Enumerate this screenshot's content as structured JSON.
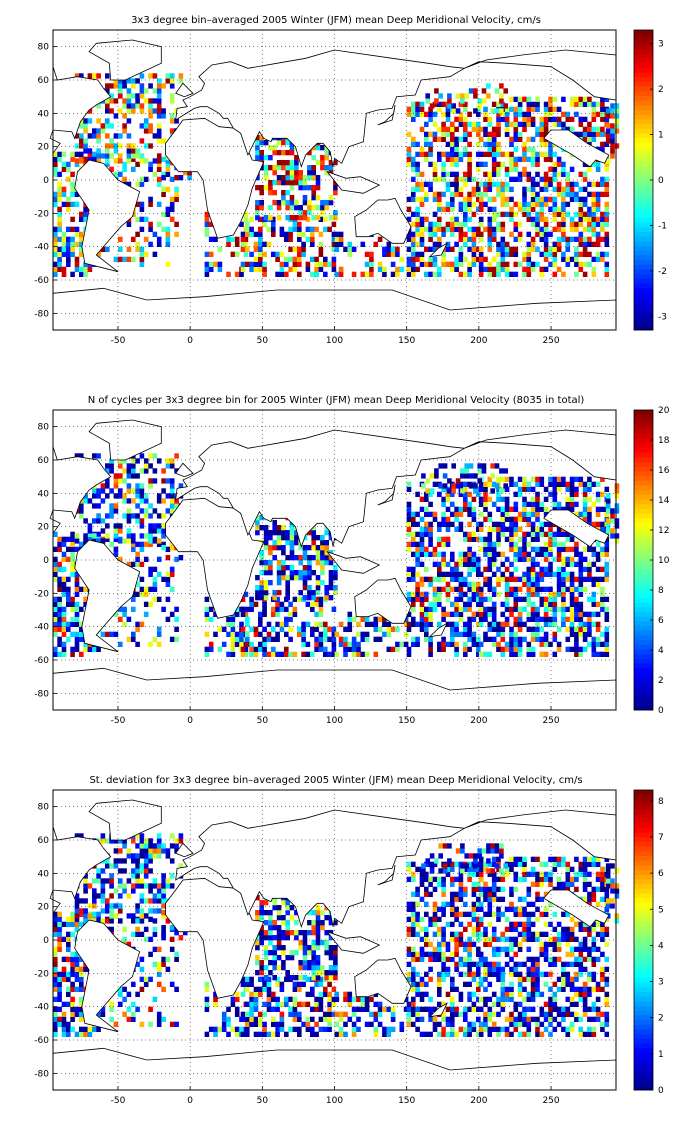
{
  "colormap": [
    "#00008f",
    "#0000ff",
    "#0080ff",
    "#00ffff",
    "#80ff80",
    "#ffff00",
    "#ff8000",
    "#ff0000",
    "#800000"
  ],
  "chart_data": [
    {
      "type": "heatmap",
      "title": "3x3 degree bin–averaged 2005 Winter (JFM) mean Deep Meridional Velocity, cm/s",
      "xlim": [
        -95,
        295
      ],
      "ylim": [
        -90,
        90
      ],
      "xticks": [
        "-50",
        "0",
        "50",
        "100",
        "150",
        "200",
        "250"
      ],
      "yticks": [
        "80",
        "60",
        "40",
        "20",
        "0",
        "-20",
        "-40",
        "-60",
        "-80"
      ],
      "grid": true,
      "colorbar": {
        "range": [
          -3.3,
          3.3
        ],
        "ticks": [
          "3",
          "2",
          "1",
          "0",
          "-1",
          "-2",
          "-3"
        ]
      },
      "seed": 11
    },
    {
      "type": "heatmap",
      "title": "N of cycles per 3x3 degree bin for 2005 Winter (JFM) mean Deep Meridional Velocity (8035 in total)",
      "xlim": [
        -95,
        295
      ],
      "ylim": [
        -90,
        90
      ],
      "xticks": [
        "-50",
        "0",
        "50",
        "100",
        "150",
        "200",
        "250"
      ],
      "yticks": [
        "80",
        "60",
        "40",
        "20",
        "0",
        "-20",
        "-40",
        "-60",
        "-80"
      ],
      "grid": true,
      "colorbar": {
        "range": [
          0,
          20
        ],
        "ticks": [
          "20",
          "18",
          "16",
          "14",
          "12",
          "10",
          "8",
          "6",
          "4",
          "2",
          "0"
        ]
      },
      "seed": 23
    },
    {
      "type": "heatmap",
      "title": "St. deviation for 3x3 degree bin–averaged 2005 Winter (JFM) mean Deep Meridional Velocity, cm/s",
      "xlim": [
        -95,
        295
      ],
      "ylim": [
        -90,
        90
      ],
      "xticks": [
        "-50",
        "0",
        "50",
        "100",
        "150",
        "200",
        "250"
      ],
      "yticks": [
        "80",
        "60",
        "40",
        "20",
        "0",
        "-20",
        "-40",
        "-60",
        "-80"
      ],
      "grid": true,
      "colorbar": {
        "range": [
          0,
          8.3
        ],
        "ticks": [
          "8",
          "7",
          "6",
          "5",
          "4",
          "3",
          "2",
          "1",
          "0"
        ]
      },
      "seed": 37
    }
  ]
}
